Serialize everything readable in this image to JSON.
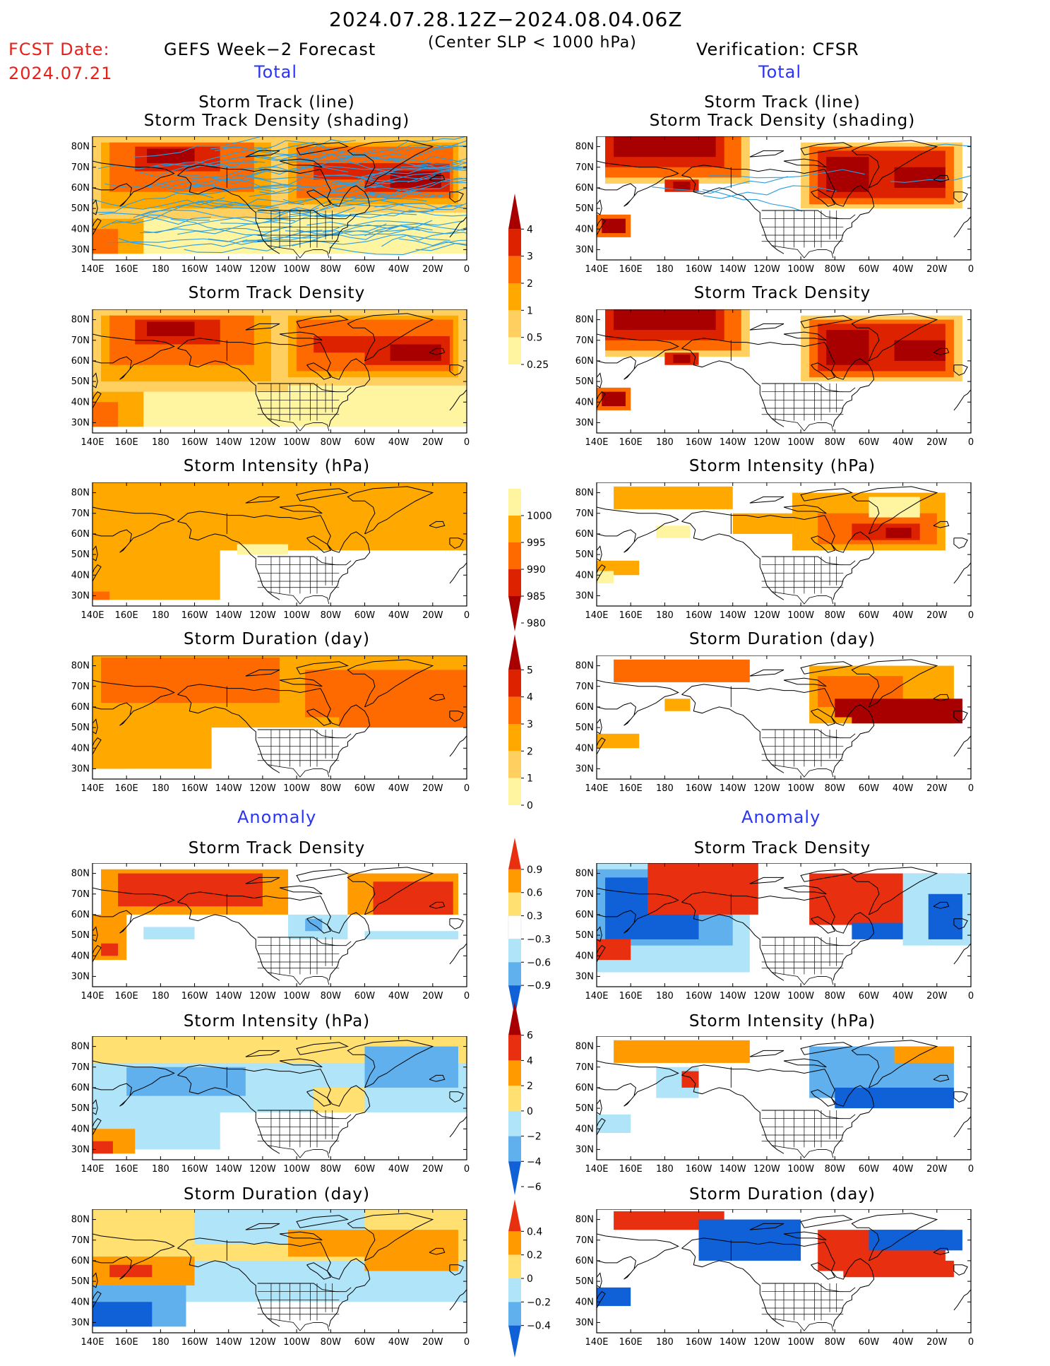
{
  "header": {
    "date_range": "2024.07.28.12Z−2024.08.04.06Z",
    "condition": "(Center SLP < 1000 hPa)",
    "fcst_label": "FCST Date:",
    "fcst_date": "2024.07.21",
    "left_title": "GEFS Week−2 Forecast",
    "right_title": "Verification: CFSR",
    "total_label": "Total",
    "anomaly_label": "Anomaly"
  },
  "panel_titles": {
    "track_line": "Storm Track (line)",
    "track_shading": "Storm Track Density (shading)",
    "density": "Storm Track Density",
    "intensity": "Storm Intensity (hPa)",
    "duration": "Storm Duration (day)"
  },
  "axes": {
    "lat_labels": [
      "80N",
      "70N",
      "60N",
      "50N",
      "40N",
      "30N"
    ],
    "lon_labels": [
      "140E",
      "160E",
      "180",
      "160W",
      "140W",
      "120W",
      "100W",
      "80W",
      "60W",
      "40W",
      "20W",
      "0"
    ]
  },
  "colorbars": {
    "density_total": {
      "labels": [
        "4",
        "3",
        "2",
        "1",
        "0.5",
        "0.25"
      ],
      "colors": [
        "#a80000",
        "#dd2200",
        "#ff6a00",
        "#ffa800",
        "#ffd060",
        "#fff4a0"
      ]
    },
    "intensity_total": {
      "labels": [
        "1000",
        "995",
        "990",
        "985",
        "980"
      ],
      "colors": [
        "#fff4a0",
        "#ffa800",
        "#ff6a00",
        "#dd2200",
        "#a80000"
      ]
    },
    "duration_total": {
      "labels": [
        "5",
        "4",
        "3",
        "2",
        "1",
        "0"
      ],
      "colors": [
        "#a80000",
        "#dd2200",
        "#ff6a00",
        "#ffa800",
        "#ffd060",
        "#fff4a0"
      ]
    },
    "density_anom": {
      "labels": [
        "0.9",
        "0.6",
        "0.3",
        "−0.3",
        "−0.6",
        "−0.9"
      ],
      "colors": [
        "#e83010",
        "#ff9a00",
        "#ffe070",
        "#ffffff",
        "#b0e4f8",
        "#60b0ee",
        "#1060d8"
      ]
    },
    "intensity_anom": {
      "labels": [
        "6",
        "4",
        "2",
        "0",
        "−2",
        "−4",
        "−6"
      ],
      "colors": [
        "#a80000",
        "#e83010",
        "#ff9a00",
        "#ffe070",
        "#b0e4f8",
        "#60b0ee",
        "#1060d8"
      ]
    },
    "duration_anom": {
      "labels": [
        "0.4",
        "0.2",
        "0",
        "−0.2",
        "−0.4"
      ],
      "colors": [
        "#e83010",
        "#ff9a00",
        "#ffe070",
        "#b0e4f8",
        "#60b0ee",
        "#1060d8"
      ]
    }
  },
  "palette": {
    "dark_red": "#a80000",
    "red": "#dd2200",
    "orange": "#ff6a00",
    "light_orange": "#ffa800",
    "yellow": "#ffd060",
    "pale": "#fff4a0",
    "anom_red": "#e83010",
    "anom_orange": "#ff9a00",
    "anom_yellow": "#ffe070",
    "anom_lblue": "#b0e4f8",
    "anom_mblue": "#60b0ee",
    "anom_dblue": "#1060d8",
    "track_line": "#2a9ee0"
  }
}
